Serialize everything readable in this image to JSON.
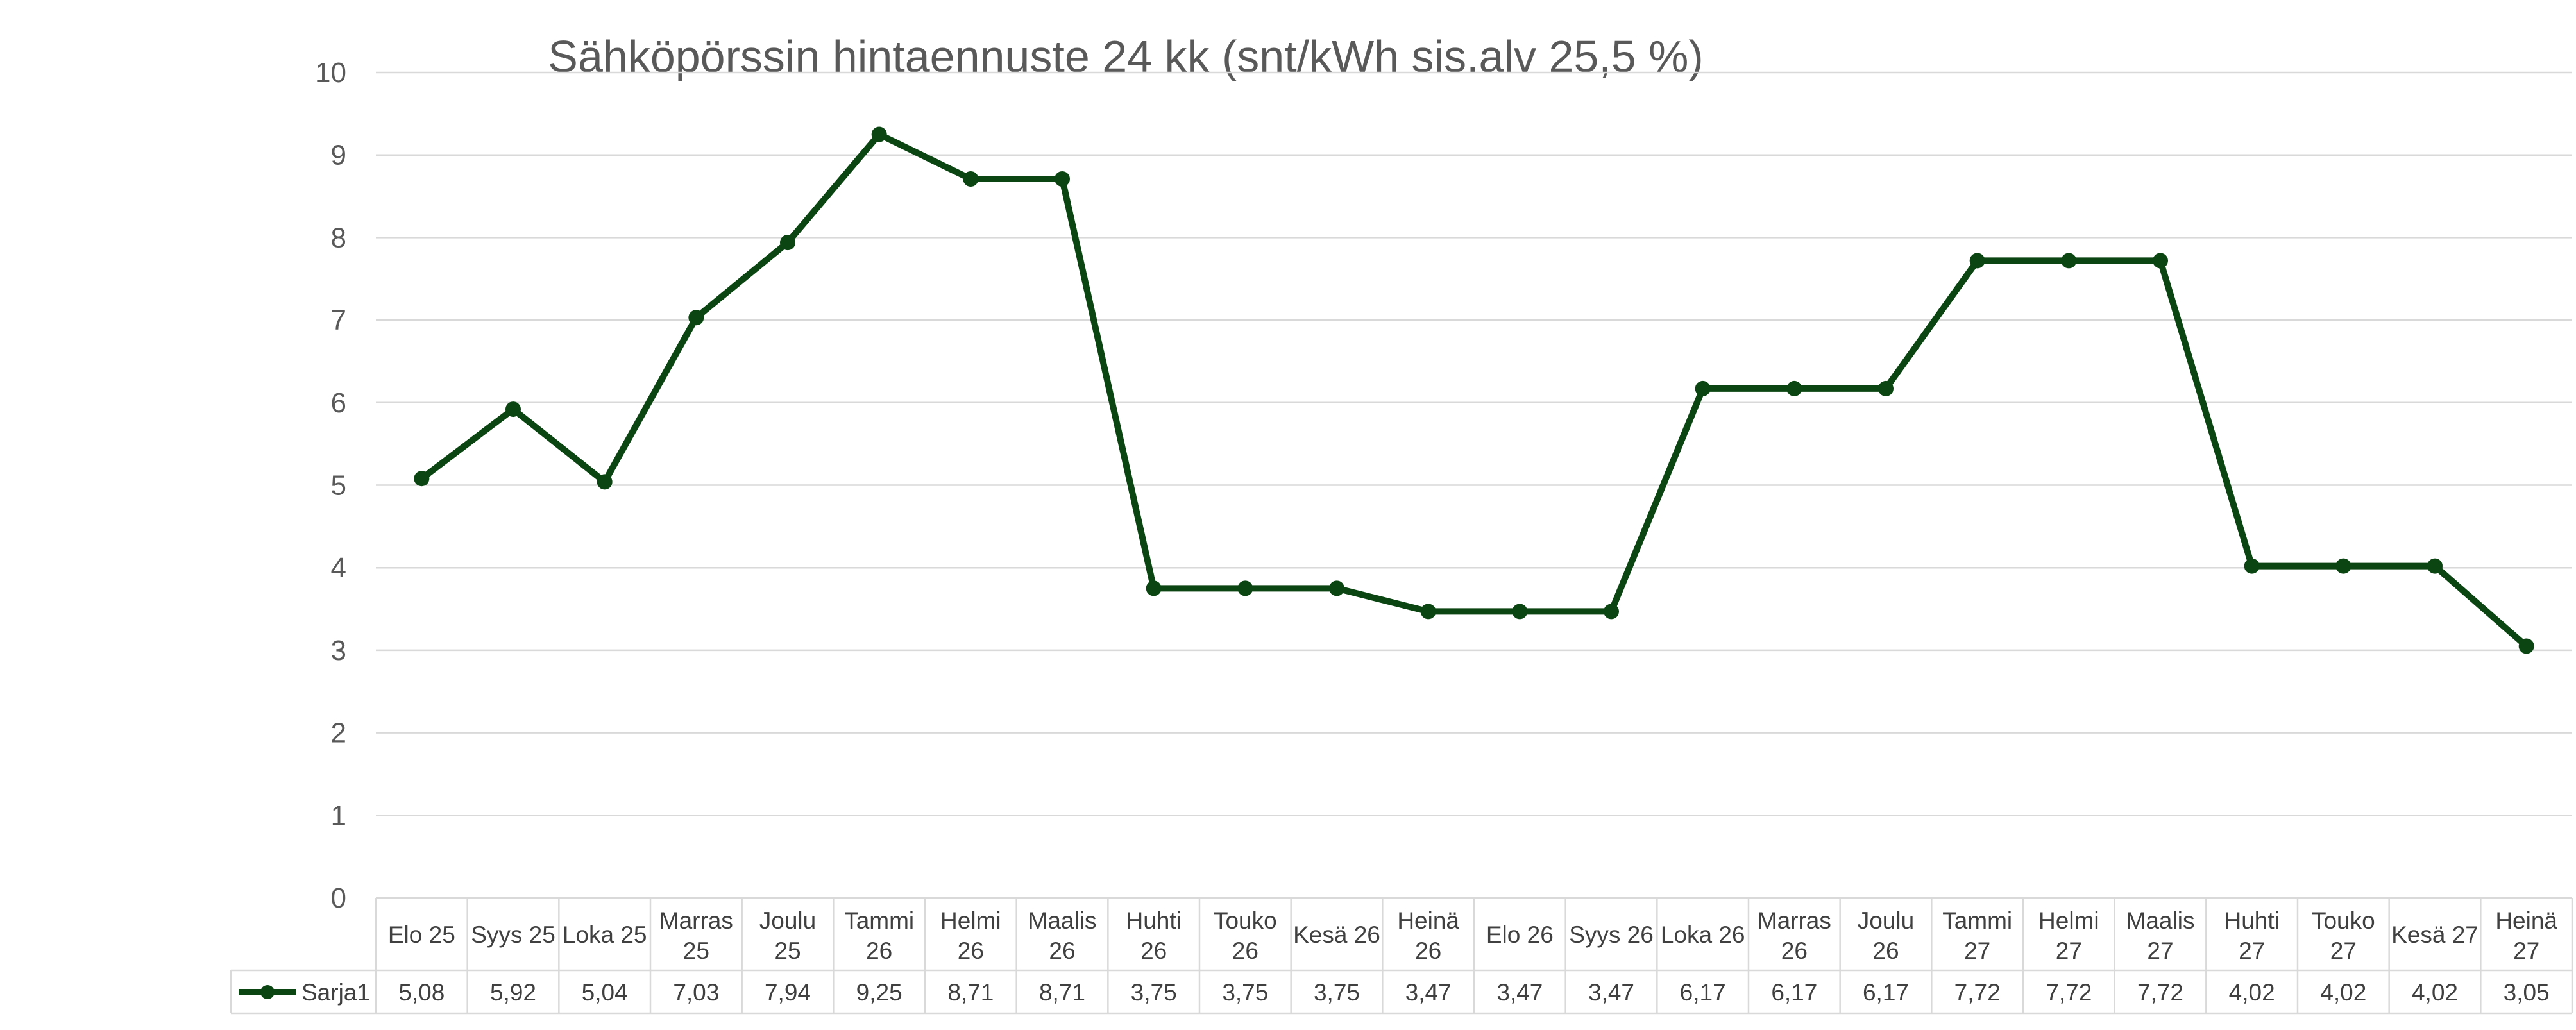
{
  "chart_data": {
    "type": "line",
    "title": "Sähköpörssin hintaennuste 24 kk (snt/kWh sis.alv 25,5 %)",
    "categories": [
      [
        "Elo 25"
      ],
      [
        "Syys 25"
      ],
      [
        "Loka 25"
      ],
      [
        "Marras",
        "25"
      ],
      [
        "Joulu",
        "25"
      ],
      [
        "Tammi",
        "26"
      ],
      [
        "Helmi",
        "26"
      ],
      [
        "Maalis",
        "26"
      ],
      [
        "Huhti",
        "26"
      ],
      [
        "Touko",
        "26"
      ],
      [
        "Kesä 26"
      ],
      [
        "Heinä",
        "26"
      ],
      [
        "Elo 26"
      ],
      [
        "Syys 26"
      ],
      [
        "Loka 26"
      ],
      [
        "Marras",
        "26"
      ],
      [
        "Joulu",
        "26"
      ],
      [
        "Tammi",
        "27"
      ],
      [
        "Helmi",
        "27"
      ],
      [
        "Maalis",
        "27"
      ],
      [
        "Huhti",
        "27"
      ],
      [
        "Touko",
        "27"
      ],
      [
        "Kesä 27"
      ],
      [
        "Heinä",
        "27"
      ]
    ],
    "series": [
      {
        "name": "Sarja1",
        "values": [
          5.08,
          5.92,
          5.04,
          7.03,
          7.94,
          9.25,
          8.71,
          8.71,
          3.75,
          3.75,
          3.75,
          3.47,
          3.47,
          3.47,
          6.17,
          6.17,
          6.17,
          7.72,
          7.72,
          7.72,
          4.02,
          4.02,
          4.02,
          3.05
        ],
        "labels": [
          "5,08",
          "5,92",
          "5,04",
          "7,03",
          "7,94",
          "9,25",
          "8,71",
          "8,71",
          "3,75",
          "3,75",
          "3,75",
          "3,47",
          "3,47",
          "3,47",
          "6,17",
          "6,17",
          "6,17",
          "7,72",
          "7,72",
          "7,72",
          "4,02",
          "4,02",
          "4,02",
          "3,05"
        ],
        "color": "#0b4512"
      }
    ],
    "ylim": [
      0,
      10
    ],
    "yticks": [
      "0",
      "1",
      "2",
      "3",
      "4",
      "5",
      "6",
      "7",
      "8",
      "9",
      "10"
    ],
    "grid": true,
    "data_table": true,
    "legend": "data table left"
  }
}
